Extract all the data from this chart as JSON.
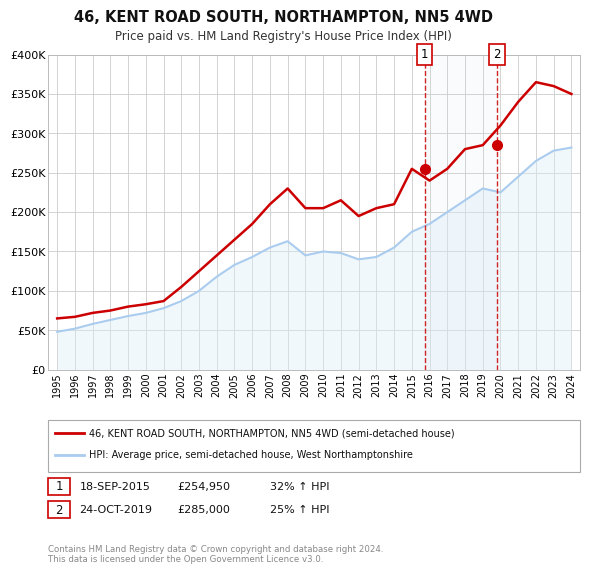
{
  "title": "46, KENT ROAD SOUTH, NORTHAMPTON, NN5 4WD",
  "subtitle": "Price paid vs. HM Land Registry's House Price Index (HPI)",
  "background_color": "#ffffff",
  "grid_color": "#cccccc",
  "property_color": "#cc0000",
  "hpi_color": "#aaccee",
  "hpi_fill_color": "#ddeef8",
  "marker1_value": 254950,
  "marker2_value": 285000,
  "marker1_x": 2015.72,
  "marker2_x": 2019.8,
  "annotation1": [
    "1",
    "18-SEP-2015",
    "£254,950",
    "32% ↑ HPI"
  ],
  "annotation2": [
    "2",
    "24-OCT-2019",
    "£285,000",
    "25% ↑ HPI"
  ],
  "legend_property": "46, KENT ROAD SOUTH, NORTHAMPTON, NN5 4WD (semi-detached house)",
  "legend_hpi": "HPI: Average price, semi-detached house, West Northamptonshire",
  "footer": "Contains HM Land Registry data © Crown copyright and database right 2024.\nThis data is licensed under the Open Government Licence v3.0.",
  "ylim": [
    0,
    400000
  ],
  "yticks": [
    0,
    50000,
    100000,
    150000,
    200000,
    250000,
    300000,
    350000,
    400000
  ],
  "ytick_labels": [
    "£0",
    "£50K",
    "£100K",
    "£150K",
    "£200K",
    "£250K",
    "£300K",
    "£350K",
    "£400K"
  ],
  "years": [
    1995,
    1996,
    1997,
    1998,
    1999,
    2000,
    2001,
    2002,
    2003,
    2004,
    2005,
    2006,
    2007,
    2008,
    2009,
    2010,
    2011,
    2012,
    2013,
    2014,
    2015,
    2016,
    2017,
    2018,
    2019,
    2020,
    2021,
    2022,
    2023,
    2024
  ],
  "property_prices": [
    65000,
    67000,
    72000,
    75000,
    80000,
    83000,
    87000,
    105000,
    125000,
    145000,
    165000,
    185000,
    210000,
    230000,
    205000,
    205000,
    215000,
    195000,
    205000,
    210000,
    254950,
    240000,
    255000,
    280000,
    285000,
    310000,
    340000,
    365000,
    360000,
    350000
  ],
  "hpi_prices": [
    48000,
    52000,
    58000,
    63000,
    68000,
    72000,
    78000,
    87000,
    100000,
    118000,
    133000,
    143000,
    155000,
    163000,
    145000,
    150000,
    148000,
    140000,
    143000,
    155000,
    175000,
    185000,
    200000,
    215000,
    230000,
    225000,
    245000,
    265000,
    278000,
    282000
  ]
}
